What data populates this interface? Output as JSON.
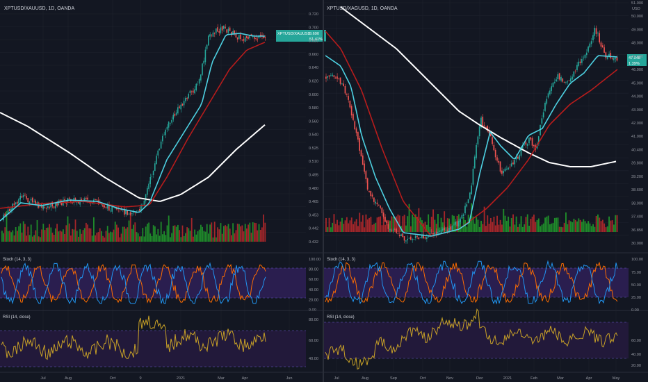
{
  "colors": {
    "bg": "#131722",
    "grid": "#1e222d",
    "axis_text": "#9598a1",
    "up": "#26a69a",
    "down": "#ef5350",
    "vol_up": "#1f8a2a",
    "vol_down": "#a3262a",
    "ma_fast": "#4dd0e1",
    "ma_mid": "#b71c1c",
    "ma_slow": "#ffffff",
    "stoch_k": "#2196f3",
    "stoch_d": "#ff6d00",
    "stoch_band": "#2a1e4f",
    "rsi_line": "#c9a227",
    "rsi_band": "#22193a",
    "price_tag": "#26a69a"
  },
  "left": {
    "title": "XPTUSD/XAUUSD, 1D, OANDA",
    "price_tag_symbol": "XPTUSD/XAUUSD",
    "price_tag_value": "0.690",
    "price_tag_change": "51.41%",
    "y_ticks": [
      "0.720",
      "0.700",
      "0.680",
      "0.660",
      "0.640",
      "0.620",
      "0.600",
      "0.580",
      "0.560",
      "0.540",
      "0.525",
      "0.510",
      "0.495",
      "0.480",
      "0.465",
      "0.453",
      "0.442",
      "0.432"
    ],
    "x_ticks": [
      "Jul",
      "Aug",
      "Oct",
      "9",
      "2021",
      "Mar",
      "Apr",
      "Jun"
    ],
    "stoch_label": "Stoch (14, 3, 3)",
    "stoch_ticks": [
      "100.00",
      "80.00",
      "60.00",
      "40.00",
      "20.00",
      "0.00"
    ],
    "rsi_label": "RSI (14, close)",
    "rsi_ticks": [
      "80.00",
      "60.00",
      "40.00"
    ]
  },
  "right": {
    "title": "XPTUSD/XAGUSD, 1D, OANDA",
    "axis_unit": "USD",
    "price_tag_value": "47.048",
    "price_tag_change": "1.39%",
    "y_ticks": [
      "51.000",
      "50.000",
      "49.000",
      "48.000",
      "47.000",
      "46.000",
      "45.000",
      "44.000",
      "43.000",
      "42.000",
      "41.000",
      "40.400",
      "39.800",
      "39.200",
      "38.600",
      "38.000",
      "37.400",
      "36.850",
      "30.000"
    ],
    "x_ticks": [
      "Jul",
      "Aug",
      "Sep",
      "Oct",
      "Nov",
      "Dec",
      "2021",
      "Feb",
      "Mar",
      "Apr",
      "May"
    ],
    "stoch_label": "Stoch (14, 3, 3)",
    "stoch_ticks": [
      "100.00",
      "75.00",
      "50.00",
      "25.00",
      "0.00"
    ],
    "rsi_label": "RSI (14, close)",
    "rsi_ticks": [
      "60.00",
      "40.00",
      "20.00"
    ]
  },
  "chart_data": [
    {
      "type": "line",
      "title": "XPTUSD/XAUUSD, 1D, OANDA",
      "x": [
        "Jul",
        "Aug",
        "Oct",
        "9",
        "2021",
        "Mar",
        "Apr"
      ],
      "series": [
        {
          "values": [
            0.455,
            0.468,
            0.462,
            0.458,
            0.575,
            0.705,
            0.69
          ]
        }
      ],
      "ylim": [
        0.432,
        0.73
      ]
    },
    {
      "type": "line",
      "title": "XPTUSD/XAGUSD, 1D, OANDA",
      "x": [
        "Jul",
        "Aug",
        "Sep",
        "Oct",
        "Nov",
        "Dec",
        "2021",
        "Feb",
        "Mar",
        "Apr",
        "May"
      ],
      "series": [
        {
          "values": [
            46.0,
            38.0,
            30.5,
            33.0,
            35.5,
            42.0,
            40.0,
            43.0,
            46.0,
            48.5,
            47.0
          ]
        }
      ],
      "ylim": [
        30.0,
        51.0
      ]
    }
  ]
}
